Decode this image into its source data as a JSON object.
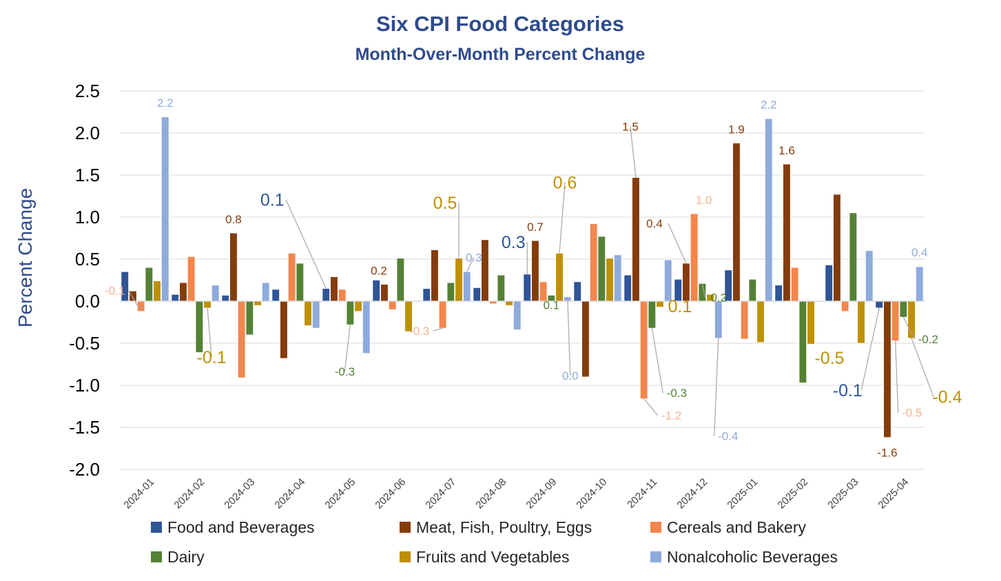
{
  "chart_data": {
    "type": "bar",
    "title": "Six CPI Food Categories",
    "subtitle": "Month-Over-Month Percent Change",
    "ylabel": "Percent Change",
    "xlabel": "",
    "ylim": [
      -2.0,
      2.5
    ],
    "yticks": [
      "2.5",
      "2.0",
      "1.5",
      "1.0",
      "0.5",
      "0.0",
      "-0.5",
      "-1.0",
      "-1.5",
      "-2.0"
    ],
    "grid": true,
    "legend_position": "bottom",
    "categories": [
      "2024-01",
      "2024-02",
      "2024-03",
      "2024-04",
      "2024-05",
      "2024-06",
      "2024-07",
      "2024-08",
      "2024-09",
      "2024-10",
      "2024-11",
      "2024-12",
      "2025-01",
      "2025-02",
      "2025-03",
      "2025-04"
    ],
    "series": [
      {
        "name": "Food and Beverages",
        "color": "#2f5597",
        "values": [
          0.35,
          0.08,
          0.07,
          0.14,
          0.15,
          0.25,
          0.15,
          0.16,
          0.32,
          0.23,
          0.31,
          0.26,
          0.37,
          0.19,
          0.43,
          -0.08
        ]
      },
      {
        "name": "Meat, Fish, Poultry, Eggs",
        "color": "#843c0c",
        "values": [
          0.12,
          0.22,
          0.81,
          -0.68,
          0.29,
          0.2,
          0.61,
          0.73,
          0.72,
          -0.9,
          1.47,
          0.45,
          1.88,
          1.63,
          1.27,
          -1.62
        ]
      },
      {
        "name": "Cereals and Bakery",
        "color": "#f4864c",
        "values": [
          -0.12,
          0.53,
          -0.91,
          0.57,
          0.14,
          -0.1,
          -0.32,
          -0.03,
          0.23,
          0.92,
          -1.16,
          1.04,
          -0.45,
          0.4,
          -0.12,
          -0.47
        ]
      },
      {
        "name": "Dairy",
        "color": "#548235",
        "values": [
          0.4,
          -0.61,
          -0.4,
          0.45,
          -0.28,
          0.51,
          0.22,
          0.31,
          0.07,
          0.77,
          -0.32,
          0.21,
          0.26,
          -0.97,
          1.05,
          -0.19
        ]
      },
      {
        "name": "Fruits and Vegetables",
        "color": "#bf9000",
        "values": [
          0.24,
          -0.08,
          -0.05,
          -0.29,
          -0.12,
          -0.36,
          0.51,
          -0.05,
          0.57,
          0.51,
          -0.07,
          0.08,
          -0.49,
          -0.51,
          -0.5,
          -0.44
        ]
      },
      {
        "name": "Nonalcoholic Beverages",
        "color": "#8faadc",
        "values": [
          2.19,
          0.19,
          0.22,
          -0.32,
          -0.62,
          0.0,
          0.35,
          -0.34,
          0.05,
          0.55,
          0.49,
          -0.44,
          2.17,
          0.0,
          0.6,
          0.41
        ]
      }
    ],
    "annotations": [
      {
        "series": 2,
        "cat": 0,
        "text": "-0.1",
        "color": "#f8b18c",
        "size": 17,
        "leader": true
      },
      {
        "series": 5,
        "cat": 0,
        "text": "2.2",
        "color": "#8faadc",
        "size": 17
      },
      {
        "series": 4,
        "cat": 1,
        "text": "-0.1",
        "color": "#bf9000",
        "size": 25,
        "leader": true
      },
      {
        "series": 1,
        "cat": 2,
        "text": "0.8",
        "color": "#843c0c",
        "size": 17
      },
      {
        "series": 0,
        "cat": 4,
        "text": "0.1",
        "color": "#2f5597",
        "size": 25,
        "leader": true
      },
      {
        "series": 3,
        "cat": 4,
        "text": "-0.3",
        "color": "#548235",
        "size": 17,
        "leader": true
      },
      {
        "series": 1,
        "cat": 5,
        "text": "0.2",
        "color": "#843c0c",
        "size": 17
      },
      {
        "series": 2,
        "cat": 6,
        "text": "-0.3",
        "color": "#f8b18c",
        "size": 17,
        "leader": true
      },
      {
        "series": 4,
        "cat": 6,
        "text": "0.5",
        "color": "#bf9000",
        "size": 25,
        "leader": true
      },
      {
        "series": 5,
        "cat": 6,
        "text": "0.3",
        "color": "#8faadc",
        "size": 17,
        "leader": true
      },
      {
        "series": 0,
        "cat": 8,
        "text": "0.3",
        "color": "#2f5597",
        "size": 25,
        "leader": true
      },
      {
        "series": 1,
        "cat": 8,
        "text": "0.7",
        "color": "#843c0c",
        "size": 17
      },
      {
        "series": 3,
        "cat": 8,
        "text": "0.1",
        "color": "#548235",
        "size": 17
      },
      {
        "series": 4,
        "cat": 8,
        "text": "0.6",
        "color": "#bf9000",
        "size": 25,
        "leader": true
      },
      {
        "series": 5,
        "cat": 8,
        "text": "0.0",
        "color": "#8faadc",
        "size": 17,
        "leader": true
      },
      {
        "series": 1,
        "cat": 10,
        "text": "1.5",
        "color": "#843c0c",
        "size": 17,
        "leader": true
      },
      {
        "series": 2,
        "cat": 10,
        "text": "-1.2",
        "color": "#f8b18c",
        "size": 17,
        "leader": true
      },
      {
        "series": 3,
        "cat": 10,
        "text": "-0.3",
        "color": "#548235",
        "size": 17,
        "leader": true
      },
      {
        "series": 1,
        "cat": 11,
        "text": "0.4",
        "color": "#843c0c",
        "size": 17,
        "leader": true
      },
      {
        "series": 2,
        "cat": 11,
        "text": "1.0",
        "color": "#f8b18c",
        "size": 17
      },
      {
        "series": 3,
        "cat": 11,
        "text": "0.2",
        "color": "#548235",
        "size": 17,
        "leader": true
      },
      {
        "series": 4,
        "cat": 11,
        "text": "0.1",
        "color": "#bf9000",
        "size": 25
      },
      {
        "series": 5,
        "cat": 11,
        "text": "-0.4",
        "color": "#8faadc",
        "size": 17,
        "leader": true
      },
      {
        "series": 1,
        "cat": 12,
        "text": "1.9",
        "color": "#843c0c",
        "size": 17
      },
      {
        "series": 5,
        "cat": 12,
        "text": "2.2",
        "color": "#8faadc",
        "size": 17
      },
      {
        "series": 1,
        "cat": 13,
        "text": "1.6",
        "color": "#843c0c",
        "size": 17
      },
      {
        "series": 4,
        "cat": 14,
        "text": "-0.5",
        "color": "#bf9000",
        "size": 25
      },
      {
        "series": 0,
        "cat": 15,
        "text": "-0.1",
        "color": "#2f5597",
        "size": 25,
        "leader": true
      },
      {
        "series": 1,
        "cat": 15,
        "text": "-1.6",
        "color": "#843c0c",
        "size": 17
      },
      {
        "series": 2,
        "cat": 15,
        "text": "-0.5",
        "color": "#f8b18c",
        "size": 17,
        "leader": true
      },
      {
        "series": 3,
        "cat": 15,
        "text": "-0.2",
        "color": "#548235",
        "size": 17,
        "leader": true
      },
      {
        "series": 4,
        "cat": 15,
        "text": "-0.4",
        "color": "#bf9000",
        "size": 25,
        "leader": true
      },
      {
        "series": 5,
        "cat": 15,
        "text": "0.4",
        "color": "#8faadc",
        "size": 17
      }
    ]
  }
}
